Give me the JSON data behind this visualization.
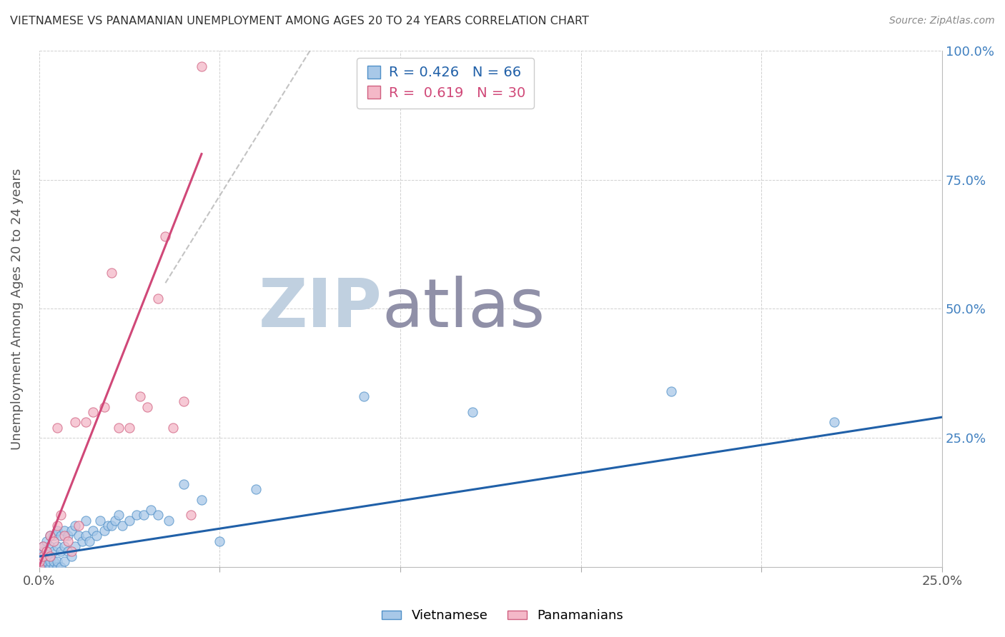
{
  "title": "VIETNAMESE VS PANAMANIAN UNEMPLOYMENT AMONG AGES 20 TO 24 YEARS CORRELATION CHART",
  "source": "Source: ZipAtlas.com",
  "ylabel": "Unemployment Among Ages 20 to 24 years",
  "xlim": [
    0.0,
    0.25
  ],
  "ylim": [
    0.0,
    1.0
  ],
  "legend_blue_R": "0.426",
  "legend_blue_N": "66",
  "legend_pink_R": "0.619",
  "legend_pink_N": "30",
  "blue_color": "#a8c8e8",
  "pink_color": "#f4b8c8",
  "blue_edge_color": "#5090c8",
  "pink_edge_color": "#d06080",
  "blue_line_color": "#2060a8",
  "pink_line_color": "#d04878",
  "watermark_zip": "ZIP",
  "watermark_atlas": "atlas",
  "watermark_color_zip": "#c0d0e0",
  "watermark_color_atlas": "#9090a8",
  "background_color": "#ffffff",
  "grid_color": "#d0d0d0",
  "vietnamese_x": [
    0.0,
    0.0,
    0.0,
    0.001,
    0.001,
    0.001,
    0.001,
    0.001,
    0.002,
    0.002,
    0.002,
    0.002,
    0.002,
    0.003,
    0.003,
    0.003,
    0.003,
    0.003,
    0.004,
    0.004,
    0.004,
    0.004,
    0.005,
    0.005,
    0.005,
    0.005,
    0.006,
    0.006,
    0.006,
    0.007,
    0.007,
    0.007,
    0.008,
    0.008,
    0.009,
    0.009,
    0.01,
    0.01,
    0.011,
    0.012,
    0.013,
    0.013,
    0.014,
    0.015,
    0.016,
    0.017,
    0.018,
    0.019,
    0.02,
    0.021,
    0.022,
    0.023,
    0.025,
    0.027,
    0.029,
    0.031,
    0.033,
    0.036,
    0.04,
    0.045,
    0.05,
    0.06,
    0.09,
    0.12,
    0.175,
    0.22
  ],
  "vietnamese_y": [
    0.0,
    0.01,
    0.02,
    0.0,
    0.01,
    0.02,
    0.03,
    0.04,
    0.0,
    0.01,
    0.02,
    0.03,
    0.05,
    0.0,
    0.01,
    0.02,
    0.04,
    0.06,
    0.0,
    0.01,
    0.03,
    0.06,
    0.0,
    0.01,
    0.04,
    0.07,
    0.0,
    0.03,
    0.06,
    0.01,
    0.04,
    0.07,
    0.03,
    0.06,
    0.02,
    0.07,
    0.04,
    0.08,
    0.06,
    0.05,
    0.06,
    0.09,
    0.05,
    0.07,
    0.06,
    0.09,
    0.07,
    0.08,
    0.08,
    0.09,
    0.1,
    0.08,
    0.09,
    0.1,
    0.1,
    0.11,
    0.1,
    0.09,
    0.16,
    0.13,
    0.05,
    0.15,
    0.33,
    0.3,
    0.34,
    0.28
  ],
  "panamanian_x": [
    0.0,
    0.0,
    0.001,
    0.001,
    0.002,
    0.003,
    0.003,
    0.004,
    0.005,
    0.005,
    0.006,
    0.007,
    0.008,
    0.009,
    0.01,
    0.011,
    0.013,
    0.015,
    0.018,
    0.02,
    0.022,
    0.025,
    0.028,
    0.03,
    0.033,
    0.035,
    0.037,
    0.04,
    0.042,
    0.045
  ],
  "panamanian_y": [
    0.0,
    0.01,
    0.02,
    0.04,
    0.03,
    0.02,
    0.06,
    0.05,
    0.08,
    0.27,
    0.1,
    0.06,
    0.05,
    0.03,
    0.28,
    0.08,
    0.28,
    0.3,
    0.31,
    0.57,
    0.27,
    0.27,
    0.33,
    0.31,
    0.52,
    0.64,
    0.27,
    0.32,
    0.1,
    0.97
  ],
  "viet_line_x0": 0.0,
  "viet_line_y0": 0.02,
  "viet_line_x1": 0.25,
  "viet_line_y1": 0.29,
  "pan_line_x0": 0.0,
  "pan_line_y0": 0.0,
  "pan_line_x1": 0.045,
  "pan_line_y1": 0.8,
  "dash_line_x0": 0.035,
  "dash_line_y0": 0.55,
  "dash_line_x1": 0.075,
  "dash_line_y1": 1.0
}
